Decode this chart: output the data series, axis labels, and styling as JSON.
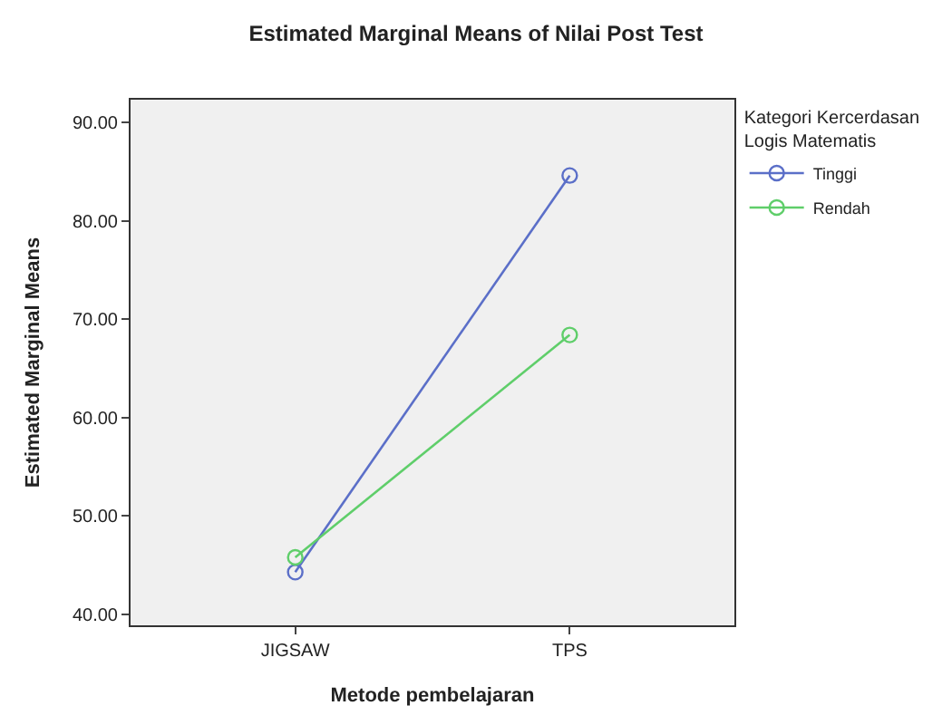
{
  "chart_data": {
    "type": "line",
    "title": "Estimated Marginal Means of Nilai Post Test",
    "xlabel": "Metode pembelajaran",
    "ylabel": "Estimated Marginal Means",
    "legend_title": "Kategori Kercerdasan\nLogis Matematis",
    "categories": [
      "JIGSAW",
      "TPS"
    ],
    "series": [
      {
        "name": "Tinggi",
        "color": "#5b6fc8",
        "values": [
          44.3,
          84.6
        ]
      },
      {
        "name": "Rendah",
        "color": "#5fce6a",
        "values": [
          45.8,
          68.4
        ]
      }
    ],
    "ylim": [
      38.9,
      92.3
    ],
    "yticks": [
      {
        "value": 40,
        "label": "40.00"
      },
      {
        "value": 50,
        "label": "50.00"
      },
      {
        "value": 60,
        "label": "60.00"
      },
      {
        "value": 70,
        "label": "70.00"
      },
      {
        "value": 80,
        "label": "80.00"
      },
      {
        "value": 90,
        "label": "90.00"
      }
    ],
    "grid": false,
    "legend": "top right",
    "marker": "circle",
    "line_style": "solid"
  }
}
